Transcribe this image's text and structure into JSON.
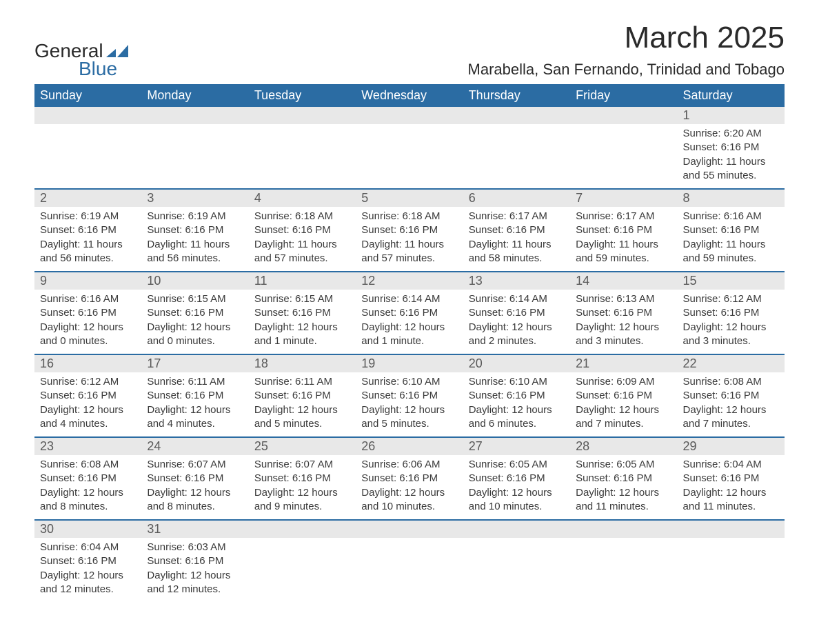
{
  "logo": {
    "text_general": "General",
    "text_blue": "Blue",
    "shape_color": "#2b6ca3"
  },
  "title": "March 2025",
  "location": "Marabella, San Fernando, Trinidad and Tobago",
  "day_headers": [
    "Sunday",
    "Monday",
    "Tuesday",
    "Wednesday",
    "Thursday",
    "Friday",
    "Saturday"
  ],
  "colors": {
    "header_bg": "#2b6ca3",
    "header_text": "#ffffff",
    "daynum_bg": "#e8e8e8",
    "border": "#2b6ca3",
    "text": "#3a3a3a"
  },
  "weeks": [
    [
      null,
      null,
      null,
      null,
      null,
      null,
      {
        "num": "1",
        "sunrise": "Sunrise: 6:20 AM",
        "sunset": "Sunset: 6:16 PM",
        "daylight1": "Daylight: 11 hours",
        "daylight2": "and 55 minutes."
      }
    ],
    [
      {
        "num": "2",
        "sunrise": "Sunrise: 6:19 AM",
        "sunset": "Sunset: 6:16 PM",
        "daylight1": "Daylight: 11 hours",
        "daylight2": "and 56 minutes."
      },
      {
        "num": "3",
        "sunrise": "Sunrise: 6:19 AM",
        "sunset": "Sunset: 6:16 PM",
        "daylight1": "Daylight: 11 hours",
        "daylight2": "and 56 minutes."
      },
      {
        "num": "4",
        "sunrise": "Sunrise: 6:18 AM",
        "sunset": "Sunset: 6:16 PM",
        "daylight1": "Daylight: 11 hours",
        "daylight2": "and 57 minutes."
      },
      {
        "num": "5",
        "sunrise": "Sunrise: 6:18 AM",
        "sunset": "Sunset: 6:16 PM",
        "daylight1": "Daylight: 11 hours",
        "daylight2": "and 57 minutes."
      },
      {
        "num": "6",
        "sunrise": "Sunrise: 6:17 AM",
        "sunset": "Sunset: 6:16 PM",
        "daylight1": "Daylight: 11 hours",
        "daylight2": "and 58 minutes."
      },
      {
        "num": "7",
        "sunrise": "Sunrise: 6:17 AM",
        "sunset": "Sunset: 6:16 PM",
        "daylight1": "Daylight: 11 hours",
        "daylight2": "and 59 minutes."
      },
      {
        "num": "8",
        "sunrise": "Sunrise: 6:16 AM",
        "sunset": "Sunset: 6:16 PM",
        "daylight1": "Daylight: 11 hours",
        "daylight2": "and 59 minutes."
      }
    ],
    [
      {
        "num": "9",
        "sunrise": "Sunrise: 6:16 AM",
        "sunset": "Sunset: 6:16 PM",
        "daylight1": "Daylight: 12 hours",
        "daylight2": "and 0 minutes."
      },
      {
        "num": "10",
        "sunrise": "Sunrise: 6:15 AM",
        "sunset": "Sunset: 6:16 PM",
        "daylight1": "Daylight: 12 hours",
        "daylight2": "and 0 minutes."
      },
      {
        "num": "11",
        "sunrise": "Sunrise: 6:15 AM",
        "sunset": "Sunset: 6:16 PM",
        "daylight1": "Daylight: 12 hours",
        "daylight2": "and 1 minute."
      },
      {
        "num": "12",
        "sunrise": "Sunrise: 6:14 AM",
        "sunset": "Sunset: 6:16 PM",
        "daylight1": "Daylight: 12 hours",
        "daylight2": "and 1 minute."
      },
      {
        "num": "13",
        "sunrise": "Sunrise: 6:14 AM",
        "sunset": "Sunset: 6:16 PM",
        "daylight1": "Daylight: 12 hours",
        "daylight2": "and 2 minutes."
      },
      {
        "num": "14",
        "sunrise": "Sunrise: 6:13 AM",
        "sunset": "Sunset: 6:16 PM",
        "daylight1": "Daylight: 12 hours",
        "daylight2": "and 3 minutes."
      },
      {
        "num": "15",
        "sunrise": "Sunrise: 6:12 AM",
        "sunset": "Sunset: 6:16 PM",
        "daylight1": "Daylight: 12 hours",
        "daylight2": "and 3 minutes."
      }
    ],
    [
      {
        "num": "16",
        "sunrise": "Sunrise: 6:12 AM",
        "sunset": "Sunset: 6:16 PM",
        "daylight1": "Daylight: 12 hours",
        "daylight2": "and 4 minutes."
      },
      {
        "num": "17",
        "sunrise": "Sunrise: 6:11 AM",
        "sunset": "Sunset: 6:16 PM",
        "daylight1": "Daylight: 12 hours",
        "daylight2": "and 4 minutes."
      },
      {
        "num": "18",
        "sunrise": "Sunrise: 6:11 AM",
        "sunset": "Sunset: 6:16 PM",
        "daylight1": "Daylight: 12 hours",
        "daylight2": "and 5 minutes."
      },
      {
        "num": "19",
        "sunrise": "Sunrise: 6:10 AM",
        "sunset": "Sunset: 6:16 PM",
        "daylight1": "Daylight: 12 hours",
        "daylight2": "and 5 minutes."
      },
      {
        "num": "20",
        "sunrise": "Sunrise: 6:10 AM",
        "sunset": "Sunset: 6:16 PM",
        "daylight1": "Daylight: 12 hours",
        "daylight2": "and 6 minutes."
      },
      {
        "num": "21",
        "sunrise": "Sunrise: 6:09 AM",
        "sunset": "Sunset: 6:16 PM",
        "daylight1": "Daylight: 12 hours",
        "daylight2": "and 7 minutes."
      },
      {
        "num": "22",
        "sunrise": "Sunrise: 6:08 AM",
        "sunset": "Sunset: 6:16 PM",
        "daylight1": "Daylight: 12 hours",
        "daylight2": "and 7 minutes."
      }
    ],
    [
      {
        "num": "23",
        "sunrise": "Sunrise: 6:08 AM",
        "sunset": "Sunset: 6:16 PM",
        "daylight1": "Daylight: 12 hours",
        "daylight2": "and 8 minutes."
      },
      {
        "num": "24",
        "sunrise": "Sunrise: 6:07 AM",
        "sunset": "Sunset: 6:16 PM",
        "daylight1": "Daylight: 12 hours",
        "daylight2": "and 8 minutes."
      },
      {
        "num": "25",
        "sunrise": "Sunrise: 6:07 AM",
        "sunset": "Sunset: 6:16 PM",
        "daylight1": "Daylight: 12 hours",
        "daylight2": "and 9 minutes."
      },
      {
        "num": "26",
        "sunrise": "Sunrise: 6:06 AM",
        "sunset": "Sunset: 6:16 PM",
        "daylight1": "Daylight: 12 hours",
        "daylight2": "and 10 minutes."
      },
      {
        "num": "27",
        "sunrise": "Sunrise: 6:05 AM",
        "sunset": "Sunset: 6:16 PM",
        "daylight1": "Daylight: 12 hours",
        "daylight2": "and 10 minutes."
      },
      {
        "num": "28",
        "sunrise": "Sunrise: 6:05 AM",
        "sunset": "Sunset: 6:16 PM",
        "daylight1": "Daylight: 12 hours",
        "daylight2": "and 11 minutes."
      },
      {
        "num": "29",
        "sunrise": "Sunrise: 6:04 AM",
        "sunset": "Sunset: 6:16 PM",
        "daylight1": "Daylight: 12 hours",
        "daylight2": "and 11 minutes."
      }
    ],
    [
      {
        "num": "30",
        "sunrise": "Sunrise: 6:04 AM",
        "sunset": "Sunset: 6:16 PM",
        "daylight1": "Daylight: 12 hours",
        "daylight2": "and 12 minutes."
      },
      {
        "num": "31",
        "sunrise": "Sunrise: 6:03 AM",
        "sunset": "Sunset: 6:16 PM",
        "daylight1": "Daylight: 12 hours",
        "daylight2": "and 12 minutes."
      },
      null,
      null,
      null,
      null,
      null
    ]
  ]
}
